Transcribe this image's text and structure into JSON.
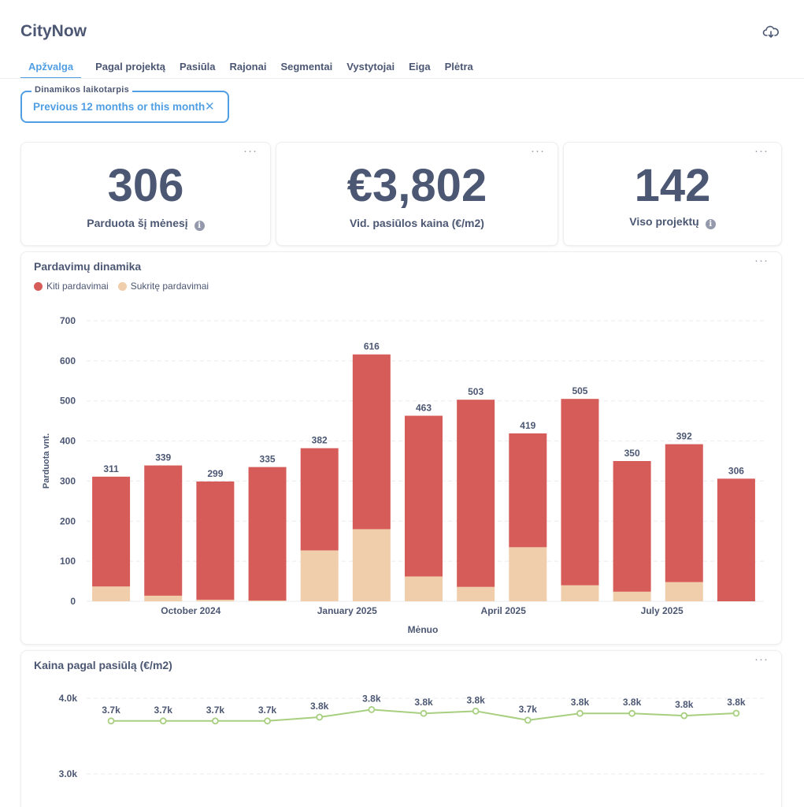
{
  "app": {
    "title": "CityNow"
  },
  "tabs": [
    {
      "label": "Apžvalga",
      "active": true
    },
    {
      "label": "Pagal projektą"
    },
    {
      "label": "Pasiūla"
    },
    {
      "label": "Rajonai"
    },
    {
      "label": "Segmentai"
    },
    {
      "label": "Vystytojai"
    },
    {
      "label": "Eiga"
    },
    {
      "label": "Plėtra"
    }
  ],
  "filter": {
    "label": "Dinamikos laikotarpis",
    "value": "Previous 12 months or this month"
  },
  "kpis": [
    {
      "value": "306",
      "label": "Parduota šį mėnesį",
      "info": true
    },
    {
      "value": "€3,802",
      "label": "Vid. pasiūlos kaina (€/m2)",
      "info": false
    },
    {
      "value": "142",
      "label": "Viso projektų",
      "info": true
    }
  ],
  "icons": {
    "download": "cloud-download-icon",
    "menu": "more-dots-icon",
    "info": "info-icon",
    "close": "close-icon"
  },
  "colors": {
    "accent": "#509ee3",
    "series_other": "#d65c59",
    "series_fallen": "#f0cdab",
    "line": "#a7cf7f"
  },
  "chart_data": [
    {
      "type": "bar",
      "stacked": true,
      "title": "Pardavimų dinamika",
      "xlabel": "Mėnuo",
      "ylabel": "Parduota vnt.",
      "ylim": [
        0,
        700
      ],
      "yticks": [
        0,
        100,
        200,
        300,
        400,
        500,
        600,
        700
      ],
      "xtick_labels": [
        "October 2024",
        "January 2025",
        "April 2025",
        "July 2025"
      ],
      "categories": [
        "2024-08",
        "2024-09",
        "2024-10",
        "2024-11",
        "2024-12",
        "2025-01",
        "2025-02",
        "2025-03",
        "2025-04",
        "2025-05",
        "2025-06",
        "2025-07",
        "2025-08"
      ],
      "series": [
        {
          "name": "Sukritę pardavimai",
          "values": [
            37,
            14,
            4,
            2,
            127,
            180,
            62,
            36,
            135,
            40,
            24,
            48,
            0
          ]
        },
        {
          "name": "Kiti pardavimai",
          "values": [
            274,
            325,
            295,
            333,
            255,
            436,
            401,
            467,
            284,
            465,
            326,
            344,
            306
          ]
        }
      ],
      "totals": [
        311,
        339,
        299,
        335,
        382,
        616,
        463,
        503,
        419,
        505,
        350,
        392,
        306
      ],
      "legend": "top-left",
      "grid": true
    },
    {
      "type": "line",
      "title": "Kaina pagal pasiūlą (€/m2)",
      "yticks": [
        "3.0k",
        "4.0k"
      ],
      "x": [
        "2024-08",
        "2024-09",
        "2024-10",
        "2024-11",
        "2024-12",
        "2025-01",
        "2025-02",
        "2025-03",
        "2025-04",
        "2025-05",
        "2025-06",
        "2025-07",
        "2025-08"
      ],
      "values": [
        3700,
        3700,
        3700,
        3700,
        3750,
        3850,
        3800,
        3830,
        3710,
        3800,
        3800,
        3770,
        3802
      ],
      "labels": [
        "3.7k",
        "3.7k",
        "3.7k",
        "3.7k",
        "3.8k",
        "3.8k",
        "3.8k",
        "3.8k",
        "3.7k",
        "3.8k",
        "3.8k",
        "3.8k",
        "3.8k"
      ],
      "grid": true
    }
  ]
}
